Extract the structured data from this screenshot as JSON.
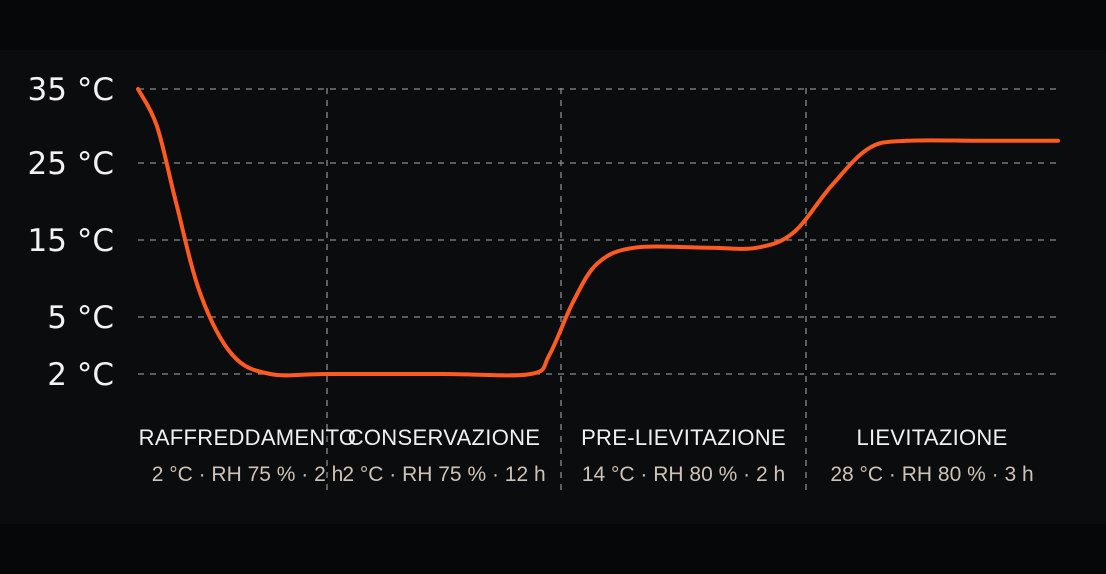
{
  "chart_data": {
    "type": "line",
    "y_ticks": [
      {
        "value": 35,
        "label": "35 °C"
      },
      {
        "value": 25,
        "label": "25 °C"
      },
      {
        "value": 15,
        "label": "15 °C"
      },
      {
        "value": 5,
        "label": "5 °C"
      },
      {
        "value": 2,
        "label": "2 °C"
      }
    ],
    "grid": true,
    "colors": {
      "line": "#ff5a1f",
      "grid": "#8a8a8a",
      "text": "#f2f2f2",
      "detail": "#cfc2b6"
    },
    "phases": [
      {
        "name": "RAFFREDDAMENTO",
        "detail": "2 °C · RH 75 % · 2 h"
      },
      {
        "name": "CONSERVAZIONE",
        "detail": "2 °C · RH 75 % · 12 h"
      },
      {
        "name": "PRE-LIEVITAZIONE",
        "detail": "14 °C · RH 80 % · 2 h"
      },
      {
        "name": "LIEVITAZIONE",
        "detail": "28 °C · RH 80 % · 3 h"
      }
    ],
    "series": [
      {
        "points": [
          [
            0.0,
            35
          ],
          [
            0.1,
            30
          ],
          [
            0.2,
            20
          ],
          [
            0.33,
            8
          ],
          [
            0.5,
            3
          ],
          [
            0.7,
            2
          ],
          [
            1.0,
            2
          ],
          [
            1.5,
            2
          ],
          [
            1.87,
            2
          ],
          [
            1.95,
            3
          ],
          [
            2.05,
            7
          ],
          [
            2.15,
            12
          ],
          [
            2.3,
            14
          ],
          [
            2.6,
            14
          ],
          [
            2.8,
            14
          ],
          [
            2.95,
            16
          ],
          [
            3.1,
            22
          ],
          [
            3.25,
            27
          ],
          [
            3.4,
            28
          ],
          [
            3.7,
            28
          ],
          [
            4.0,
            28
          ]
        ]
      }
    ]
  }
}
